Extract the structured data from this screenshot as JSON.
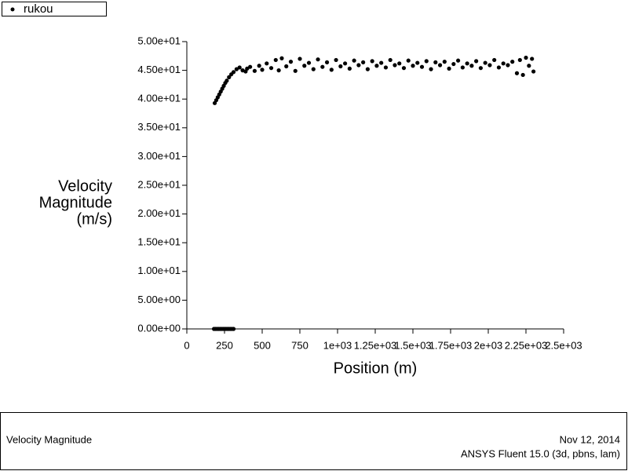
{
  "chart_data": {
    "type": "scatter",
    "xlabel": "Position (m)",
    "ylabel": [
      "Velocity",
      "Magnitude",
      "(m/s)"
    ],
    "xlim": [
      0,
      2500
    ],
    "ylim": [
      0,
      50
    ],
    "xticks": [
      0,
      250,
      500,
      750,
      {
        "value": 1000,
        "label": "1e+03"
      },
      {
        "value": 1250,
        "label": "1.25e+03"
      },
      {
        "value": 1500,
        "label": "1.5e+03"
      },
      {
        "value": 1750,
        "label": "1.75e+03"
      },
      {
        "value": 2000,
        "label": "2e+03"
      },
      {
        "value": 2250,
        "label": "2.25e+03"
      },
      {
        "value": 2500,
        "label": "2.5e+03"
      }
    ],
    "yticks": [
      {
        "value": 0,
        "label": "0.00e+00"
      },
      {
        "value": 5,
        "label": "5.00e+00"
      },
      {
        "value": 10,
        "label": "1.00e+01"
      },
      {
        "value": 15,
        "label": "1.50e+01"
      },
      {
        "value": 20,
        "label": "2.00e+01"
      },
      {
        "value": 25,
        "label": "2.50e+01"
      },
      {
        "value": 30,
        "label": "3.00e+01"
      },
      {
        "value": 35,
        "label": "3.50e+01"
      },
      {
        "value": 40,
        "label": "4.00e+01"
      },
      {
        "value": 45,
        "label": "4.50e+01"
      },
      {
        "value": 50,
        "label": "5.00e+01"
      }
    ],
    "series": [
      {
        "name": "rukou",
        "color": "#000000",
        "x": [
          180,
          190,
          200,
          210,
          220,
          230,
          240,
          250,
          260,
          270,
          280,
          290,
          300,
          310,
          185,
          195,
          205,
          215,
          225,
          235,
          245,
          255,
          265,
          280,
          295,
          310,
          330,
          350,
          370,
          390,
          400,
          420,
          450,
          480,
          500,
          530,
          560,
          590,
          610,
          630,
          660,
          690,
          720,
          750,
          780,
          810,
          840,
          870,
          900,
          930,
          960,
          990,
          1020,
          1050,
          1080,
          1110,
          1140,
          1170,
          1200,
          1230,
          1260,
          1290,
          1320,
          1350,
          1380,
          1410,
          1440,
          1470,
          1500,
          1530,
          1560,
          1590,
          1620,
          1650,
          1680,
          1710,
          1740,
          1770,
          1800,
          1830,
          1860,
          1890,
          1920,
          1950,
          1980,
          2010,
          2040,
          2070,
          2100,
          2130,
          2160,
          2190,
          2210,
          2230,
          2250,
          2270,
          2290,
          2300
        ],
        "y": [
          0,
          0,
          0,
          0,
          0,
          0,
          0,
          0,
          0,
          0,
          0,
          0,
          0,
          0,
          39.3,
          39.8,
          40.3,
          40.8,
          41.3,
          41.8,
          42.3,
          42.8,
          43.2,
          43.8,
          44.3,
          44.7,
          45.2,
          45.5,
          45.0,
          44.8,
          45.3,
          45.6,
          44.9,
          45.8,
          45.1,
          46.2,
          45.4,
          46.8,
          45.0,
          47.1,
          45.7,
          46.5,
          44.9,
          47.0,
          45.8,
          46.3,
          45.2,
          46.9,
          45.6,
          46.4,
          45.1,
          46.8,
          45.7,
          46.2,
          45.3,
          46.7,
          45.9,
          46.4,
          45.2,
          46.6,
          45.8,
          46.3,
          45.5,
          46.8,
          45.9,
          46.2,
          45.4,
          46.7,
          45.8,
          46.3,
          45.6,
          46.6,
          45.2,
          46.4,
          45.9,
          46.5,
          45.3,
          46.1,
          46.7,
          45.5,
          46.2,
          45.8,
          46.6,
          45.4,
          46.3,
          45.9,
          46.8,
          45.5,
          46.2,
          45.9,
          46.5,
          44.5,
          46.8,
          44.2,
          47.2,
          45.8,
          47.0,
          44.8
        ]
      }
    ]
  },
  "footer": {
    "left": "Velocity Magnitude",
    "date": "Nov 12, 2014",
    "software": "ANSYS Fluent 15.0 (3d, pbns, lam)"
  }
}
